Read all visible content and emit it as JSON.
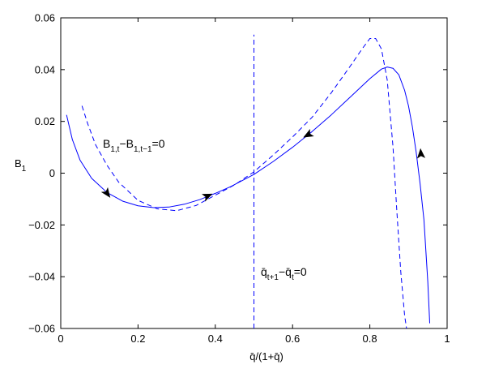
{
  "chart_data": {
    "type": "line",
    "title": "",
    "xlabel": "q̄/(1+q̄)",
    "ylabel": "B",
    "ylabel_subscript": "1",
    "xlim": [
      0,
      1
    ],
    "ylim": [
      -0.06,
      0.06
    ],
    "x_ticks": [
      0,
      0.2,
      0.4,
      0.6,
      0.8,
      1
    ],
    "x_tick_labels": [
      "0",
      "0.2",
      "0.4",
      "0.6",
      "0.8",
      "1"
    ],
    "y_ticks": [
      -0.06,
      -0.04,
      -0.02,
      0,
      0.02,
      0.04,
      0.06
    ],
    "y_tick_labels": [
      "−0.06",
      "−0.04",
      "−0.02",
      "0",
      "0.02",
      "0.04",
      "0.06"
    ],
    "grid": false,
    "colors": {
      "line": "#0000ff",
      "axes": "#000000",
      "arrows": "#000000"
    },
    "annotations": {
      "b_nullcline": {
        "main": "B",
        "sub1": "1,t",
        "mid": "−B",
        "sub2": "1,t−1",
        "tail": "=0"
      },
      "q_nullcline": {
        "main": "q̄",
        "sub1": "t+1",
        "mid": "−q̄",
        "sub2": "t",
        "tail": "=0"
      }
    },
    "series": [
      {
        "style": "solid",
        "x": [
          0.015,
          0.03,
          0.05,
          0.08,
          0.12,
          0.16,
          0.2,
          0.24,
          0.28,
          0.32,
          0.36,
          0.4,
          0.44,
          0.5,
          0.55,
          0.6,
          0.65,
          0.7,
          0.75,
          0.8,
          0.83,
          0.845,
          0.86,
          0.875,
          0.89,
          0.9,
          0.91,
          0.92,
          0.93,
          0.94,
          0.95,
          0.955
        ],
        "y": [
          0.0225,
          0.013,
          0.005,
          -0.002,
          -0.0075,
          -0.0108,
          -0.0126,
          -0.0133,
          -0.0131,
          -0.012,
          -0.0102,
          -0.0078,
          -0.0052,
          -0.0005,
          0.0045,
          0.01,
          0.016,
          0.0225,
          0.0295,
          0.0365,
          0.0402,
          0.041,
          0.0405,
          0.038,
          0.032,
          0.026,
          0.018,
          0.008,
          -0.004,
          -0.018,
          -0.042,
          -0.058
        ]
      },
      {
        "style": "dashed",
        "x": [
          0.055,
          0.07,
          0.09,
          0.12,
          0.15,
          0.2,
          0.25,
          0.3,
          0.35,
          0.4,
          0.45,
          0.5,
          0.55,
          0.6,
          0.65,
          0.7,
          0.75,
          0.78,
          0.8,
          0.815,
          0.83,
          0.845,
          0.86,
          0.87,
          0.88,
          0.89,
          0.895
        ],
        "y": [
          0.026,
          0.019,
          0.011,
          0.003,
          -0.0035,
          -0.0105,
          -0.0138,
          -0.0145,
          -0.0125,
          -0.0085,
          -0.0045,
          0.0005,
          0.007,
          0.014,
          0.0215,
          0.031,
          0.0415,
          0.048,
          0.052,
          0.052,
          0.048,
          0.036,
          0.01,
          -0.015,
          -0.038,
          -0.055,
          -0.06
        ]
      },
      {
        "style": "dashed",
        "x": [
          0.5,
          0.5
        ],
        "y": [
          -0.06,
          0.0535
        ]
      }
    ],
    "direction_arrows": [
      {
        "x": 0.12,
        "y": -0.0078,
        "dx": 1,
        "dy": -1.4
      },
      {
        "x": 0.38,
        "y": -0.0088,
        "dx": 1,
        "dy": 0.45
      },
      {
        "x": 0.64,
        "y": 0.0148,
        "dx": -1,
        "dy": -0.55
      },
      {
        "x": 0.932,
        "y": 0.0075,
        "dx": -0.07,
        "dy": 1
      }
    ]
  }
}
